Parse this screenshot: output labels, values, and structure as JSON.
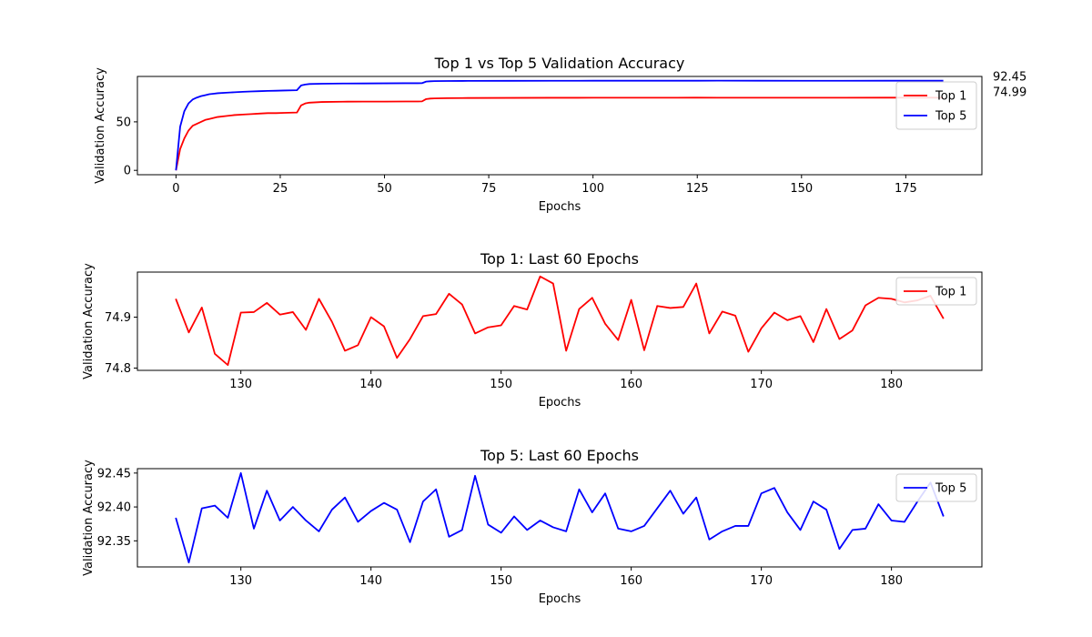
{
  "chart_data": [
    {
      "type": "line",
      "title": "Top 1 vs Top 5 Validation Accuracy",
      "xlabel": "Epochs",
      "ylabel": "Validation Accuracy",
      "xlim": [
        -9.25,
        193.25
      ],
      "ylim": [
        -4.5,
        96.8
      ],
      "xticks": [
        0,
        25,
        50,
        75,
        100,
        125,
        150,
        175
      ],
      "yticks": [
        0,
        50
      ],
      "legend": "top-right",
      "grid": false,
      "annotations": [
        {
          "text": "92.45",
          "anchor_y": 92.45
        },
        {
          "text": "74.99",
          "anchor_y": 74.99
        }
      ],
      "series": [
        {
          "name": "Top 1",
          "color": "#ff0000",
          "x": [
            0,
            1,
            2,
            3,
            4,
            5,
            6,
            7,
            8,
            9,
            10,
            12,
            14,
            16,
            18,
            20,
            22,
            24,
            26,
            28,
            29,
            30,
            31,
            32,
            35,
            40,
            45,
            50,
            55,
            58,
            59,
            60,
            61,
            62,
            65,
            70,
            80,
            90,
            100,
            110,
            120,
            125,
            130,
            140,
            150,
            160,
            170,
            180,
            184
          ],
          "y": [
            0,
            22,
            33,
            41,
            46,
            48,
            50,
            52,
            53,
            54,
            55,
            56,
            57,
            57.5,
            58,
            58.5,
            59,
            59,
            59.3,
            59.5,
            59.6,
            67,
            69,
            69.8,
            70.5,
            70.8,
            70.9,
            70.9,
            71.0,
            71.0,
            71.1,
            73.5,
            74.0,
            74.2,
            74.4,
            74.6,
            74.7,
            74.8,
            74.85,
            74.9,
            74.9,
            74.94,
            74.9,
            74.9,
            74.88,
            74.91,
            74.92,
            74.93,
            74.9
          ]
        },
        {
          "name": "Top 5",
          "color": "#0000ff",
          "x": [
            0,
            1,
            2,
            3,
            4,
            5,
            6,
            7,
            8,
            9,
            10,
            12,
            14,
            16,
            18,
            20,
            22,
            24,
            26,
            28,
            29,
            30,
            31,
            32,
            35,
            40,
            45,
            50,
            55,
            58,
            59,
            60,
            61,
            62,
            65,
            70,
            80,
            90,
            100,
            110,
            120,
            125,
            130,
            140,
            150,
            160,
            170,
            180,
            184
          ],
          "y": [
            0,
            45,
            61,
            69,
            73,
            75,
            76.5,
            77.5,
            78.5,
            79,
            79.5,
            80,
            80.5,
            81,
            81.3,
            81.6,
            81.9,
            82.1,
            82.3,
            82.5,
            82.6,
            87.5,
            88.5,
            89,
            89.3,
            89.5,
            89.6,
            89.7,
            89.8,
            89.8,
            89.9,
            91.5,
            91.8,
            92.0,
            92.1,
            92.2,
            92.3,
            92.35,
            92.38,
            92.4,
            92.4,
            92.38,
            92.45,
            92.39,
            92.37,
            92.37,
            92.42,
            92.38,
            92.39
          ]
        }
      ]
    },
    {
      "type": "line",
      "title": "Top 1: Last 60 Epochs",
      "xlabel": "Epochs",
      "ylabel": "Validation Accuracy",
      "xlim": [
        122.05,
        186.95
      ],
      "ylim": [
        74.7955,
        74.9885
      ],
      "xticks": [
        130,
        140,
        150,
        160,
        170,
        180
      ],
      "yticks": [
        74.8,
        74.9
      ],
      "legend": "top-right",
      "grid": false,
      "series": [
        {
          "name": "Top 1",
          "color": "#ff0000",
          "x": [
            125,
            126,
            127,
            128,
            129,
            130,
            131,
            132,
            133,
            134,
            135,
            136,
            137,
            138,
            139,
            140,
            141,
            142,
            143,
            144,
            145,
            146,
            147,
            148,
            149,
            150,
            151,
            152,
            153,
            154,
            155,
            156,
            157,
            158,
            159,
            160,
            161,
            162,
            163,
            164,
            165,
            166,
            167,
            168,
            169,
            170,
            171,
            172,
            173,
            174,
            175,
            176,
            177,
            178,
            179,
            180,
            181,
            182,
            183,
            184
          ],
          "y": [
            74.936,
            74.87,
            74.919,
            74.828,
            74.806,
            74.909,
            74.91,
            74.928,
            74.905,
            74.91,
            74.875,
            74.936,
            74.891,
            74.834,
            74.845,
            74.9,
            74.882,
            74.82,
            74.857,
            74.902,
            74.906,
            74.946,
            74.925,
            74.868,
            74.88,
            74.884,
            74.922,
            74.915,
            74.98,
            74.966,
            74.834,
            74.916,
            74.938,
            74.887,
            74.855,
            74.934,
            74.835,
            74.922,
            74.918,
            74.92,
            74.966,
            74.868,
            74.911,
            74.903,
            74.832,
            74.878,
            74.909,
            74.894,
            74.902,
            74.851,
            74.916,
            74.857,
            74.874,
            74.923,
            74.938,
            74.936,
            74.929,
            74.933,
            74.942,
            74.897
          ]
        }
      ]
    },
    {
      "type": "line",
      "title": "Top 5: Last 60 Epochs",
      "xlabel": "Epochs",
      "ylabel": "Validation Accuracy",
      "xlim": [
        122.05,
        186.95
      ],
      "ylim": [
        92.3115,
        92.4565
      ],
      "xticks": [
        130,
        140,
        150,
        160,
        170,
        180
      ],
      "yticks": [
        92.35,
        92.4,
        92.45
      ],
      "yticklabels": [
        "92.35",
        "92.40",
        "92.45"
      ],
      "legend": "top-right",
      "grid": false,
      "series": [
        {
          "name": "Top 5",
          "color": "#0000ff",
          "x": [
            125,
            126,
            127,
            128,
            129,
            130,
            131,
            132,
            133,
            134,
            135,
            136,
            137,
            138,
            139,
            140,
            141,
            142,
            143,
            144,
            145,
            146,
            147,
            148,
            149,
            150,
            151,
            152,
            153,
            154,
            155,
            156,
            157,
            158,
            159,
            160,
            161,
            162,
            163,
            164,
            165,
            166,
            167,
            168,
            169,
            170,
            171,
            172,
            173,
            174,
            175,
            176,
            177,
            178,
            179,
            180,
            181,
            182,
            183,
            184
          ],
          "y": [
            92.384,
            92.318,
            92.398,
            92.402,
            92.384,
            92.45,
            92.368,
            92.424,
            92.38,
            92.4,
            92.38,
            92.364,
            92.396,
            92.414,
            92.378,
            92.394,
            92.406,
            92.396,
            92.348,
            92.408,
            92.426,
            92.356,
            92.366,
            92.446,
            92.374,
            92.362,
            92.386,
            92.366,
            92.38,
            92.37,
            92.364,
            92.426,
            92.392,
            92.42,
            92.368,
            92.364,
            92.372,
            92.398,
            92.424,
            92.39,
            92.414,
            92.352,
            92.364,
            92.372,
            92.372,
            92.42,
            92.428,
            92.392,
            92.366,
            92.408,
            92.396,
            92.338,
            92.366,
            92.368,
            92.404,
            92.38,
            92.378,
            92.408,
            92.436,
            92.386
          ]
        }
      ]
    }
  ]
}
